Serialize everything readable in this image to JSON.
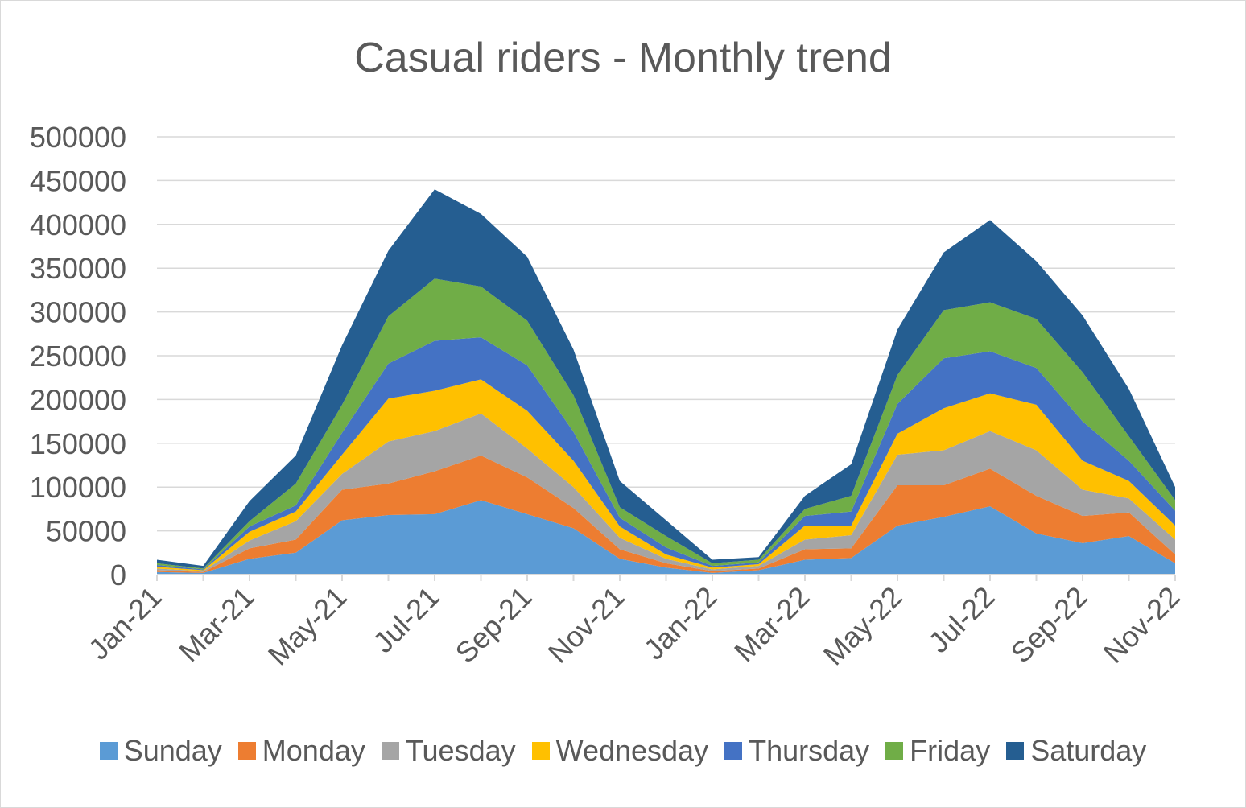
{
  "chart_data": {
    "type": "area",
    "stacked": true,
    "title": "Casual riders - Monthly trend",
    "xlabel": "",
    "ylabel": "",
    "ylim": [
      0,
      500000
    ],
    "yticks": [
      0,
      50000,
      100000,
      150000,
      200000,
      250000,
      300000,
      350000,
      400000,
      450000,
      500000
    ],
    "categories": [
      "Jan-21",
      "Feb-21",
      "Mar-21",
      "Apr-21",
      "May-21",
      "Jun-21",
      "Jul-21",
      "Aug-21",
      "Sep-21",
      "Oct-21",
      "Nov-21",
      "Dec-21",
      "Jan-22",
      "Feb-22",
      "Mar-22",
      "Apr-22",
      "May-22",
      "Jun-22",
      "Jul-22",
      "Aug-22",
      "Sep-22",
      "Oct-22",
      "Nov-22"
    ],
    "xtick_labels": [
      "Jan-21",
      "Mar-21",
      "May-21",
      "Jul-21",
      "Sep-21",
      "Nov-21",
      "Jan-22",
      "Mar-22",
      "May-22",
      "Jul-22",
      "Sep-22",
      "Nov-22"
    ],
    "legend_position": "bottom",
    "grid": true,
    "series": [
      {
        "name": "Sunday",
        "color": "#5b9bd5",
        "values": [
          3000,
          2000,
          18000,
          25000,
          62000,
          68000,
          69000,
          85000,
          69000,
          53000,
          18000,
          8000,
          2000,
          5000,
          17000,
          19000,
          56000,
          66000,
          78000,
          47000,
          36000,
          44000,
          13000
        ]
      },
      {
        "name": "Monday",
        "color": "#ed7d31",
        "values": [
          2000,
          1000,
          12000,
          15000,
          35000,
          36000,
          49000,
          51000,
          42000,
          23000,
          11000,
          5000,
          2000,
          2000,
          12000,
          11000,
          46000,
          36000,
          43000,
          43000,
          31000,
          27000,
          10000
        ]
      },
      {
        "name": "Tuesday",
        "color": "#a5a5a5",
        "values": [
          2000,
          1000,
          9000,
          21000,
          18000,
          48000,
          46000,
          48000,
          33000,
          24000,
          13000,
          5000,
          2000,
          3000,
          11000,
          15000,
          35000,
          40000,
          43000,
          52000,
          30000,
          16000,
          17000
        ]
      },
      {
        "name": "Wednesday",
        "color": "#ffc000",
        "values": [
          2000,
          1000,
          10000,
          11000,
          22000,
          49000,
          46000,
          39000,
          43000,
          30000,
          13000,
          5000,
          2000,
          2000,
          16000,
          11000,
          24000,
          48000,
          43000,
          52000,
          33000,
          20000,
          16000
        ]
      },
      {
        "name": "Thursday",
        "color": "#4472c4",
        "values": [
          2000,
          1000,
          6000,
          7000,
          25000,
          40000,
          57000,
          48000,
          52000,
          33000,
          10000,
          8000,
          2000,
          2000,
          11000,
          16000,
          34000,
          57000,
          48000,
          42000,
          45000,
          23000,
          17000
        ]
      },
      {
        "name": "Friday",
        "color": "#70ad47",
        "values": [
          2000,
          1000,
          6000,
          25000,
          32000,
          54000,
          71000,
          58000,
          51000,
          42000,
          12000,
          13000,
          3000,
          3000,
          8000,
          18000,
          33000,
          55000,
          56000,
          56000,
          56000,
          28000,
          12000
        ]
      },
      {
        "name": "Saturday",
        "color": "#255e91",
        "values": [
          4000,
          3000,
          23000,
          32000,
          68000,
          75000,
          102000,
          83000,
          73000,
          52000,
          30000,
          18000,
          4000,
          3000,
          15000,
          36000,
          52000,
          66000,
          94000,
          66000,
          65000,
          54000,
          15000
        ]
      }
    ]
  }
}
